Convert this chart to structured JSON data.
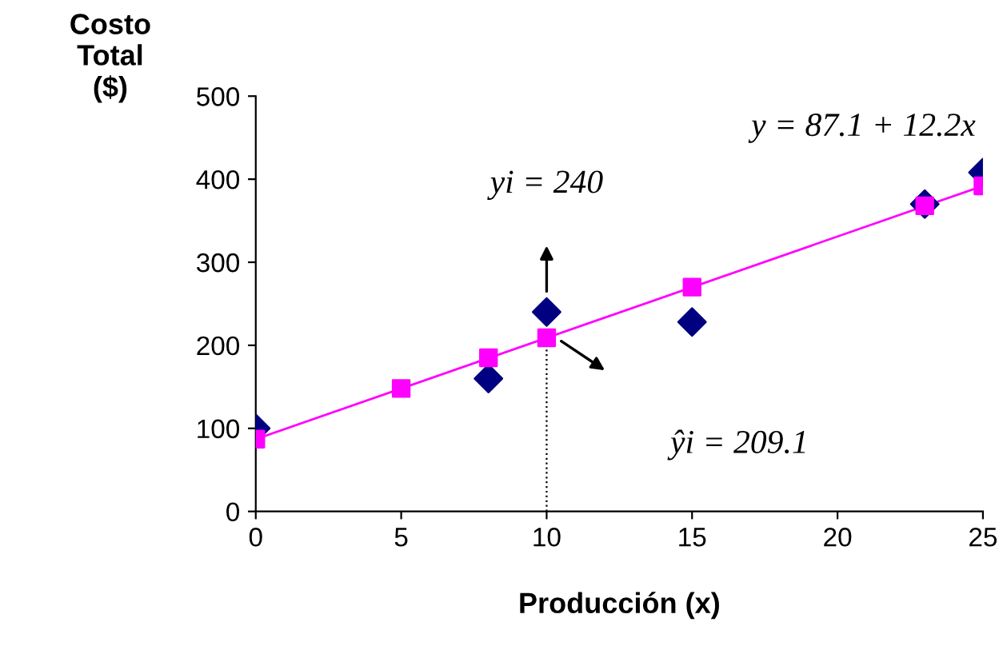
{
  "chart_data": {
    "type": "scatter",
    "xlabel": "Producción (x)",
    "ylabel": "Costo\nTotal\n($)",
    "xlim": [
      0,
      25
    ],
    "xticks": [
      0,
      5,
      10,
      15,
      20,
      25
    ],
    "ylim": [
      0,
      500
    ],
    "yticks": [
      0,
      100,
      200,
      300,
      400,
      500
    ],
    "grid": false,
    "series": [
      {
        "type": "line",
        "color": "#ff00ff",
        "x": [
          0,
          25
        ],
        "values": [
          87,
          392
        ],
        "marker": "none",
        "line_style": "solid"
      },
      {
        "color": "#000080",
        "x": [
          0,
          8,
          10,
          15,
          23,
          25
        ],
        "values": [
          100,
          160,
          240,
          228,
          370,
          408
        ],
        "marker": "diamond"
      },
      {
        "type": "scatter",
        "color": "#ff00ff",
        "x": [
          0,
          5,
          8,
          10,
          15,
          23,
          25
        ],
        "values": [
          87,
          148,
          185,
          209,
          270,
          368,
          392
        ],
        "marker": "square"
      }
    ],
    "ref_lines": [
      {
        "axis": "x",
        "value": 10,
        "label": null,
        "color": "#000000",
        "line_style": "dotted"
      }
    ],
    "annotations": [
      "yi = 240",
      "ŷi = 209.1",
      "y = 87.1 + 12.2x"
    ]
  }
}
